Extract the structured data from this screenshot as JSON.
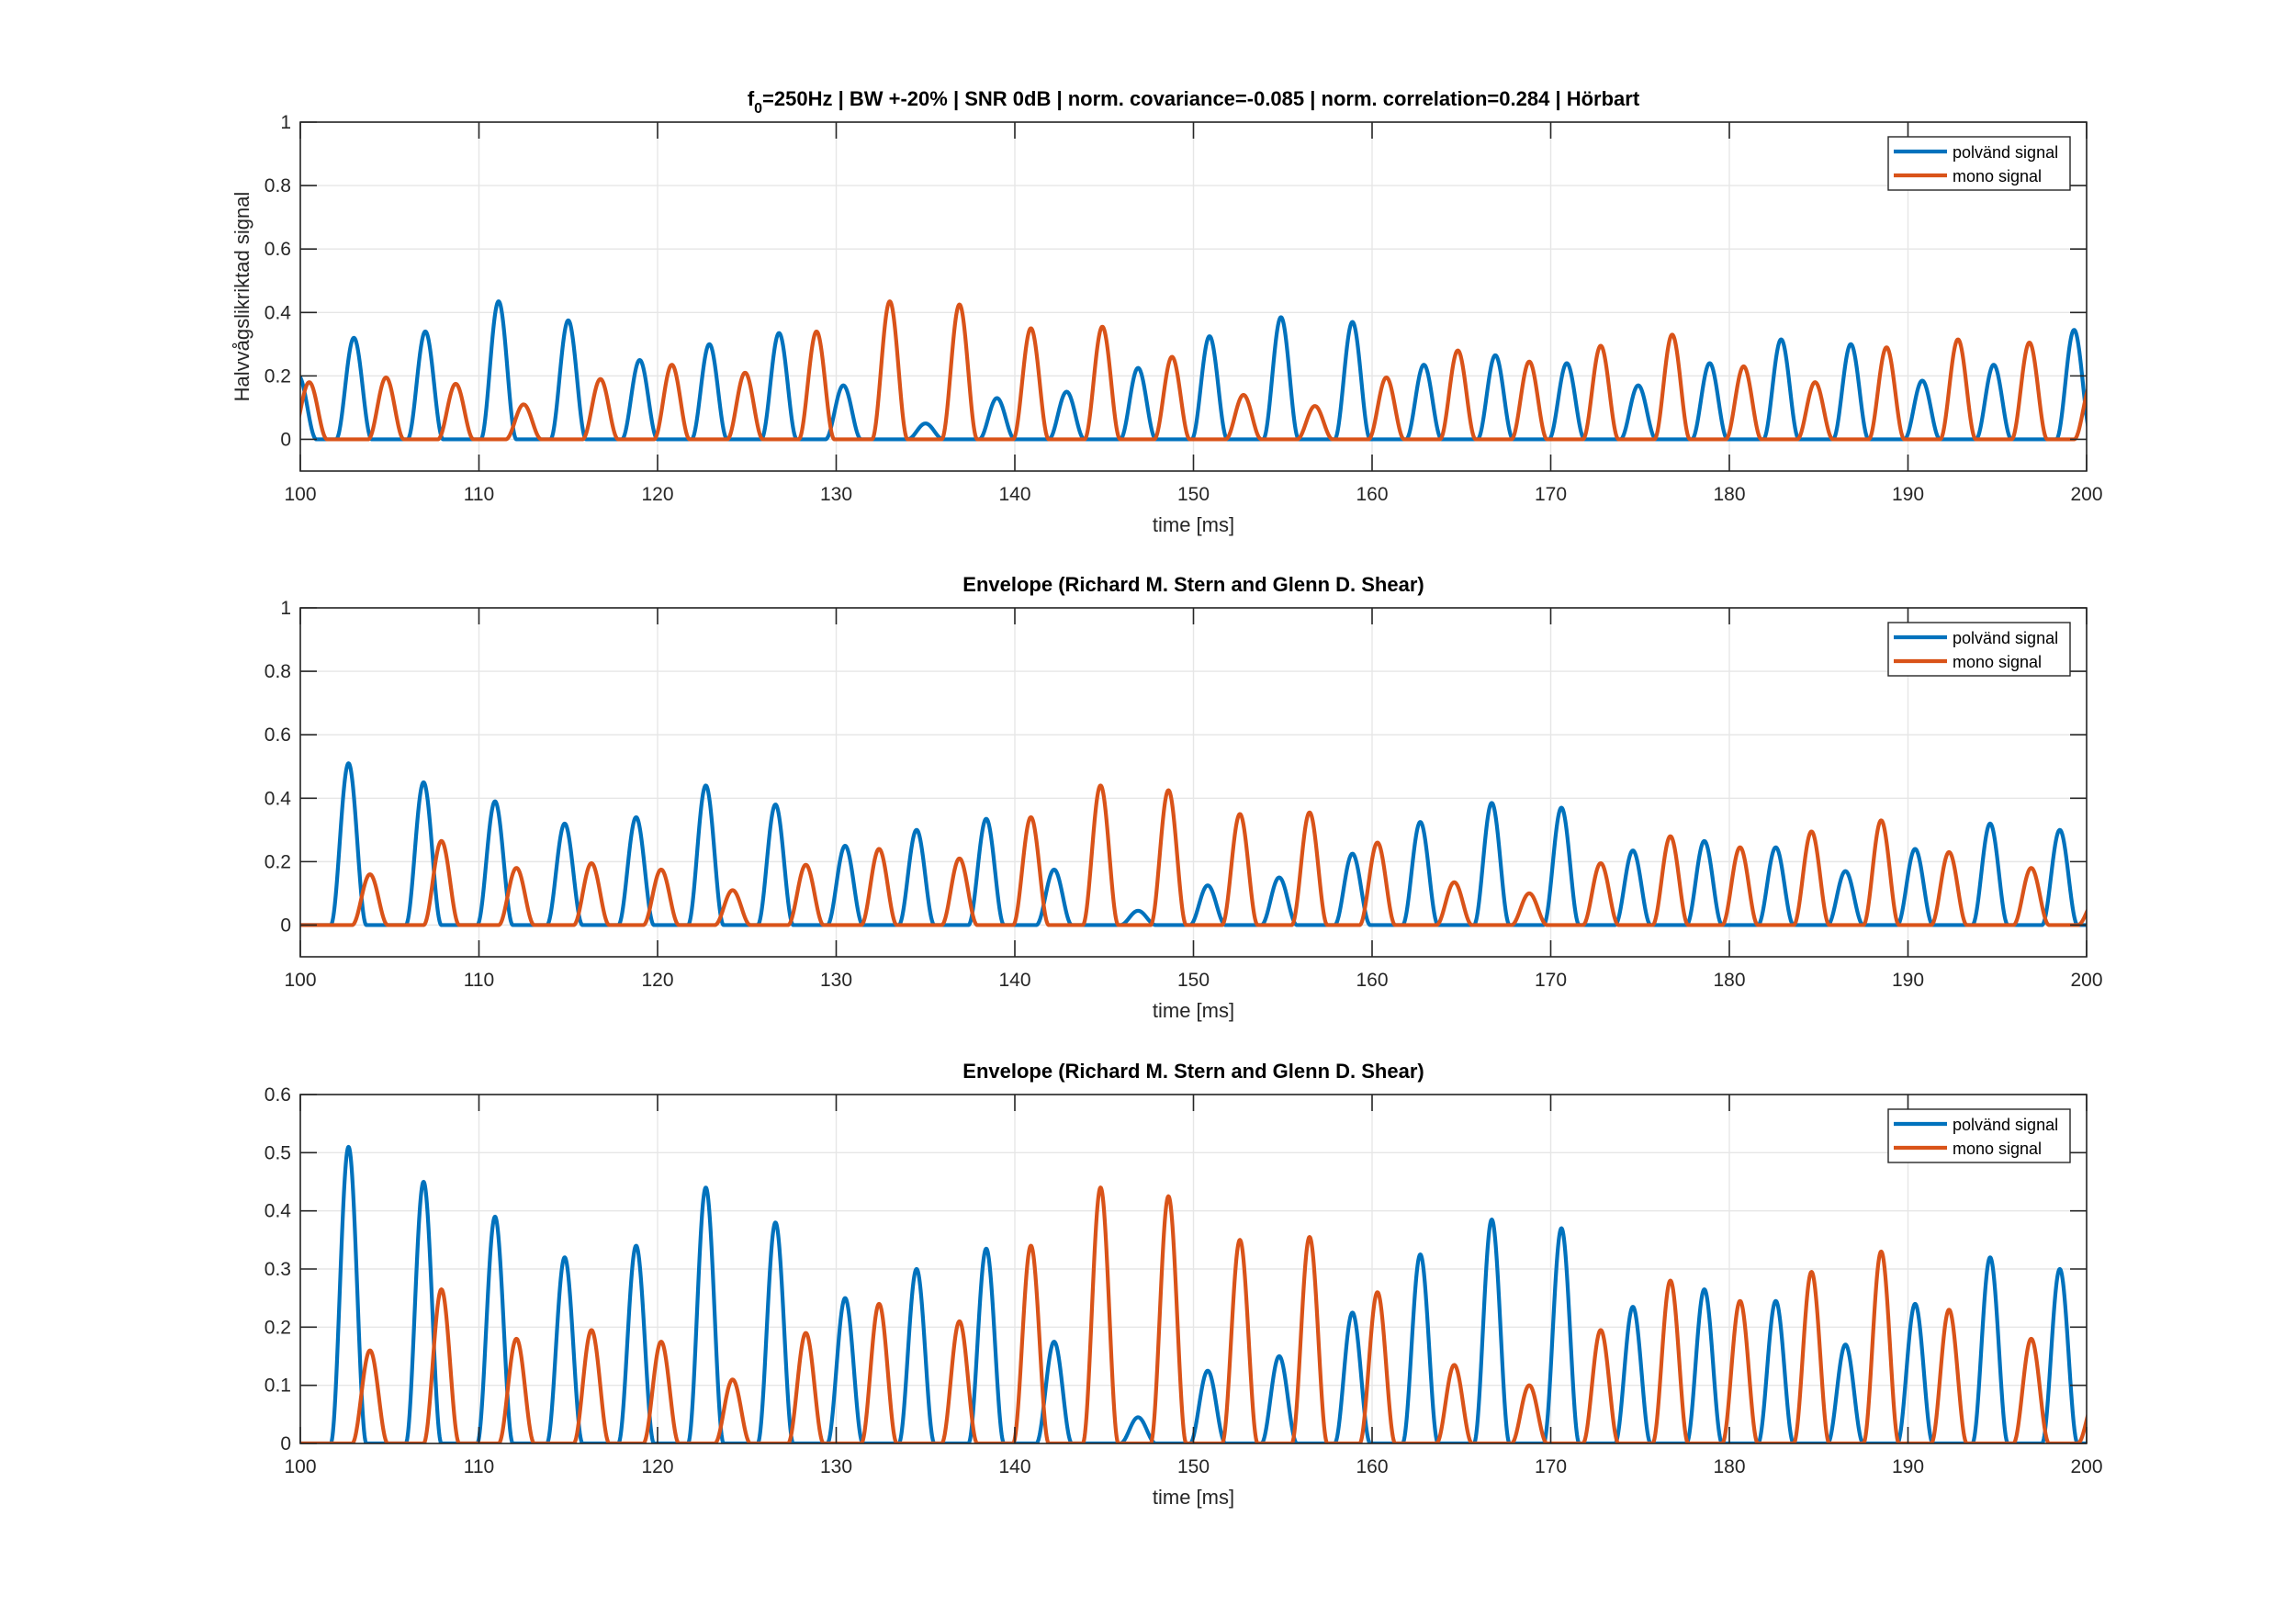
{
  "colors": {
    "blue": "#0072BD",
    "orange": "#D95319",
    "grid": "#e6e6e6",
    "axis": "#262626"
  },
  "legend_placement": "top-right",
  "chart_data": [
    {
      "type": "line",
      "title_parts": {
        "prefix": "f",
        "sub": "0",
        "rest": "=250Hz | BW +-20% | SNR 0dB | norm. covariance=-0.085 | norm. correlation=0.284 | Hörbart"
      },
      "xlabel": "time [ms]",
      "ylabel": "Halvvågslikriktad signal",
      "xlim": [
        100,
        200
      ],
      "ylim": [
        -0.1,
        1
      ],
      "xticks": [
        100,
        110,
        120,
        130,
        140,
        150,
        160,
        170,
        180,
        190,
        200
      ],
      "yticks": [
        0,
        0.2,
        0.4,
        0.6,
        0.8,
        1
      ],
      "ytick_labels": [
        "0",
        "0.2",
        "0.4",
        "0.6",
        "0.8",
        "1"
      ],
      "grid": true,
      "series": [
        {
          "name": "polvänd signal",
          "color": "blue",
          "halfwidth": 1.0,
          "peaks": [
            [
              99.9,
              0.2
            ],
            [
              103.0,
              0.32
            ],
            [
              107.0,
              0.34
            ],
            [
              111.1,
              0.435
            ],
            [
              115.0,
              0.375
            ],
            [
              119.0,
              0.25
            ],
            [
              122.9,
              0.3
            ],
            [
              126.8,
              0.335
            ],
            [
              130.4,
              0.17
            ],
            [
              135.0,
              0.05
            ],
            [
              139.0,
              0.13
            ],
            [
              142.9,
              0.15
            ],
            [
              146.9,
              0.225
            ],
            [
              150.9,
              0.325
            ],
            [
              154.9,
              0.385
            ],
            [
              158.9,
              0.37
            ],
            [
              162.9,
              0.235
            ],
            [
              166.9,
              0.265
            ],
            [
              170.9,
              0.24
            ],
            [
              174.9,
              0.17
            ],
            [
              178.9,
              0.24
            ],
            [
              182.9,
              0.315
            ],
            [
              186.8,
              0.3
            ],
            [
              190.8,
              0.185
            ],
            [
              194.8,
              0.235
            ],
            [
              199.3,
              0.345
            ]
          ]
        },
        {
          "name": "mono signal",
          "color": "orange",
          "halfwidth": 1.0,
          "peaks": [
            [
              100.5,
              0.18
            ],
            [
              104.8,
              0.195
            ],
            [
              108.7,
              0.175
            ],
            [
              112.5,
              0.11
            ],
            [
              116.8,
              0.19
            ],
            [
              120.8,
              0.235
            ],
            [
              124.9,
              0.21
            ],
            [
              128.9,
              0.34
            ],
            [
              133.0,
              0.435
            ],
            [
              136.9,
              0.425
            ],
            [
              140.9,
              0.35
            ],
            [
              144.9,
              0.355
            ],
            [
              148.8,
              0.26
            ],
            [
              152.8,
              0.14
            ],
            [
              156.8,
              0.105
            ],
            [
              160.8,
              0.195
            ],
            [
              164.8,
              0.28
            ],
            [
              168.8,
              0.245
            ],
            [
              172.8,
              0.295
            ],
            [
              176.8,
              0.33
            ],
            [
              180.8,
              0.23
            ],
            [
              184.8,
              0.18
            ],
            [
              188.8,
              0.29
            ],
            [
              192.8,
              0.315
            ],
            [
              196.8,
              0.305
            ],
            [
              200.3,
              0.18
            ]
          ]
        }
      ]
    },
    {
      "type": "line",
      "title": "Envelope (Richard M. Stern and Glenn D. Shear)",
      "xlabel": "time [ms]",
      "ylabel": "",
      "xlim": [
        100,
        200
      ],
      "ylim": [
        -0.1,
        1
      ],
      "xticks": [
        100,
        110,
        120,
        130,
        140,
        150,
        160,
        170,
        180,
        190,
        200
      ],
      "yticks": [
        0,
        0.2,
        0.4,
        0.6,
        0.8,
        1
      ],
      "ytick_labels": [
        "0",
        "0.2",
        "0.4",
        "0.6",
        "0.8",
        "1"
      ],
      "grid": true,
      "series": [
        {
          "name": "polvänd signal",
          "color": "blue",
          "halfwidth": 1.0,
          "peaks": [
            [
              102.7,
              0.51
            ],
            [
              106.9,
              0.45
            ],
            [
              110.9,
              0.39
            ],
            [
              114.8,
              0.32
            ],
            [
              118.8,
              0.34
            ],
            [
              122.7,
              0.44
            ],
            [
              126.6,
              0.38
            ],
            [
              130.5,
              0.25
            ],
            [
              134.5,
              0.3
            ],
            [
              138.4,
              0.335
            ],
            [
              142.2,
              0.175
            ],
            [
              146.9,
              0.045
            ],
            [
              150.8,
              0.125
            ],
            [
              154.8,
              0.15
            ],
            [
              158.9,
              0.225
            ],
            [
              162.7,
              0.325
            ],
            [
              166.7,
              0.385
            ],
            [
              170.6,
              0.37
            ],
            [
              174.6,
              0.235
            ],
            [
              178.6,
              0.265
            ],
            [
              182.6,
              0.245
            ],
            [
              186.5,
              0.17
            ],
            [
              190.4,
              0.24
            ],
            [
              194.6,
              0.32
            ],
            [
              198.5,
              0.3
            ]
          ]
        },
        {
          "name": "mono signal",
          "color": "orange",
          "halfwidth": 1.0,
          "peaks": [
            [
              103.9,
              0.16
            ],
            [
              107.9,
              0.265
            ],
            [
              112.1,
              0.18
            ],
            [
              116.3,
              0.195
            ],
            [
              120.2,
              0.175
            ],
            [
              124.2,
              0.11
            ],
            [
              128.3,
              0.19
            ],
            [
              132.4,
              0.24
            ],
            [
              136.9,
              0.21
            ],
            [
              140.9,
              0.34
            ],
            [
              144.8,
              0.44
            ],
            [
              148.6,
              0.425
            ],
            [
              152.6,
              0.35
            ],
            [
              156.5,
              0.355
            ],
            [
              160.3,
              0.26
            ],
            [
              164.6,
              0.135
            ],
            [
              168.8,
              0.1
            ],
            [
              172.8,
              0.195
            ],
            [
              176.7,
              0.28
            ],
            [
              180.6,
              0.245
            ],
            [
              184.6,
              0.295
            ],
            [
              188.5,
              0.33
            ],
            [
              192.3,
              0.23
            ],
            [
              196.9,
              0.18
            ],
            [
              200.5,
              0.08
            ]
          ]
        }
      ]
    },
    {
      "type": "line",
      "title": "Envelope (Richard M. Stern and Glenn D. Shear)",
      "xlabel": "time [ms]",
      "ylabel": "",
      "xlim": [
        100,
        200
      ],
      "ylim": [
        0,
        0.6
      ],
      "xticks": [
        100,
        110,
        120,
        130,
        140,
        150,
        160,
        170,
        180,
        190,
        200
      ],
      "yticks": [
        0,
        0.1,
        0.2,
        0.3,
        0.4,
        0.5,
        0.6
      ],
      "ytick_labels": [
        "0",
        "0.1",
        "0.2",
        "0.3",
        "0.4",
        "0.5",
        "0.6"
      ],
      "grid": true,
      "series": [
        {
          "name": "polvänd signal",
          "color": "blue",
          "halfwidth": 1.0,
          "peaks": [
            [
              102.7,
              0.51
            ],
            [
              106.9,
              0.45
            ],
            [
              110.9,
              0.39
            ],
            [
              114.8,
              0.32
            ],
            [
              118.8,
              0.34
            ],
            [
              122.7,
              0.44
            ],
            [
              126.6,
              0.38
            ],
            [
              130.5,
              0.25
            ],
            [
              134.5,
              0.3
            ],
            [
              138.4,
              0.335
            ],
            [
              142.2,
              0.175
            ],
            [
              146.9,
              0.045
            ],
            [
              150.8,
              0.125
            ],
            [
              154.8,
              0.15
            ],
            [
              158.9,
              0.225
            ],
            [
              162.7,
              0.325
            ],
            [
              166.7,
              0.385
            ],
            [
              170.6,
              0.37
            ],
            [
              174.6,
              0.235
            ],
            [
              178.6,
              0.265
            ],
            [
              182.6,
              0.245
            ],
            [
              186.5,
              0.17
            ],
            [
              190.4,
              0.24
            ],
            [
              194.6,
              0.32
            ],
            [
              198.5,
              0.3
            ]
          ]
        },
        {
          "name": "mono signal",
          "color": "orange",
          "halfwidth": 1.0,
          "peaks": [
            [
              103.9,
              0.16
            ],
            [
              107.9,
              0.265
            ],
            [
              112.1,
              0.18
            ],
            [
              116.3,
              0.195
            ],
            [
              120.2,
              0.175
            ],
            [
              124.2,
              0.11
            ],
            [
              128.3,
              0.19
            ],
            [
              132.4,
              0.24
            ],
            [
              136.9,
              0.21
            ],
            [
              140.9,
              0.34
            ],
            [
              144.8,
              0.44
            ],
            [
              148.6,
              0.425
            ],
            [
              152.6,
              0.35
            ],
            [
              156.5,
              0.355
            ],
            [
              160.3,
              0.26
            ],
            [
              164.6,
              0.135
            ],
            [
              168.8,
              0.1
            ],
            [
              172.8,
              0.195
            ],
            [
              176.7,
              0.28
            ],
            [
              180.6,
              0.245
            ],
            [
              184.6,
              0.295
            ],
            [
              188.5,
              0.33
            ],
            [
              192.3,
              0.23
            ],
            [
              196.9,
              0.18
            ],
            [
              200.5,
              0.08
            ]
          ]
        }
      ]
    }
  ]
}
